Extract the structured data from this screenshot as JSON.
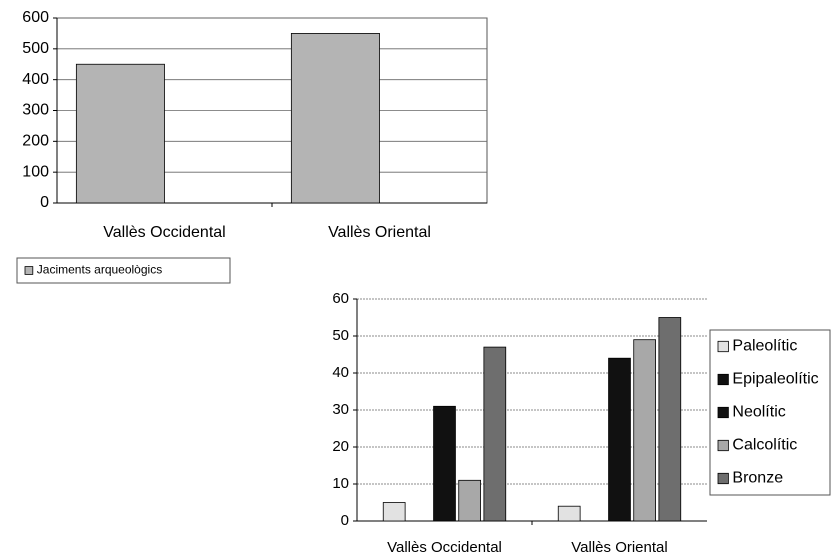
{
  "chart_data": [
    {
      "type": "bar",
      "categories": [
        "Vallès Occidental",
        "Vallès Oriental"
      ],
      "series": [
        {
          "name": "Jaciments arqueològics",
          "color": "#b4b4b4",
          "values": [
            450,
            550
          ]
        }
      ],
      "ylim": [
        0,
        600
      ],
      "yticks": [
        0,
        100,
        200,
        300,
        400,
        500,
        600
      ],
      "grid": true,
      "legend": "bottom-left"
    },
    {
      "type": "bar",
      "categories": [
        "Vallès Occidental",
        "Vallès Oriental"
      ],
      "series": [
        {
          "name": "Paleolític",
          "color": "#e2e2e2",
          "values": [
            5,
            4
          ]
        },
        {
          "name": "Epipaleolític",
          "color": "#111111",
          "values": [
            0,
            0
          ]
        },
        {
          "name": "Neolític",
          "color": "#111111",
          "values": [
            31,
            44
          ]
        },
        {
          "name": "Calcolític",
          "color": "#a8a8a8",
          "values": [
            11,
            49
          ]
        },
        {
          "name": "Bronze",
          "color": "#6e6e6e",
          "values": [
            47,
            55
          ]
        }
      ],
      "ylim": [
        0,
        60
      ],
      "yticks": [
        0,
        10,
        20,
        30,
        40,
        50,
        60
      ],
      "grid": true,
      "legend": "right"
    }
  ]
}
